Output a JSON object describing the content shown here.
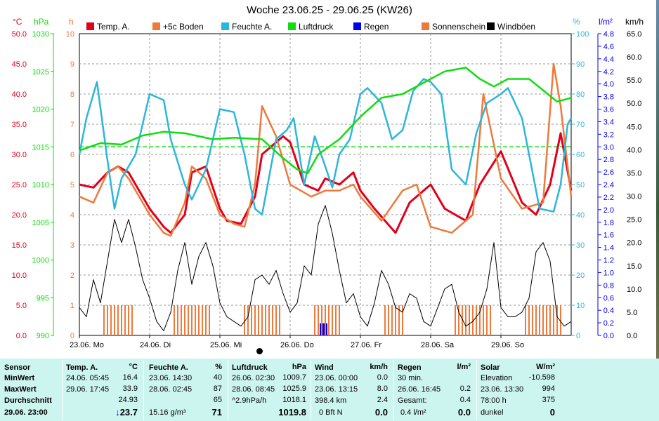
{
  "title": "Woche 23.06.25 - 29.06.25 (KW26)",
  "units": {
    "temp": "°C",
    "press": "hPa",
    "hours": "h",
    "pct": "%",
    "rad": "l/m²",
    "wind": "km/h"
  },
  "legend": [
    {
      "label": "Temp. A.",
      "color": "#e0001a"
    },
    {
      "label": "+5c Boden",
      "color": "#ee7a3c"
    },
    {
      "label": "Feuchte A.",
      "color": "#2cb6dc"
    },
    {
      "label": "Luftdruck",
      "color": "#10dd10"
    },
    {
      "label": "Regen",
      "color": "#0000ee"
    },
    {
      "label": "Sonnenschein",
      "color": "#ee7a3c"
    },
    {
      "label": "Windböen",
      "color": "#000000"
    }
  ],
  "chart_data": {
    "type": "line",
    "title": "Woche 23.06.25 - 29.06.25 (KW26)",
    "x_ticks": [
      "23.06. Mo",
      "24.06. Di",
      "25.06. Mi",
      "26.06. Do",
      "27.06. Fr",
      "28.06. Sa",
      "29.06. So"
    ],
    "axes": {
      "temp_c": {
        "ticks": [
          "50.0",
          "45.0",
          "40.0",
          "35.0",
          "30.0",
          "25.0",
          "20.0",
          "15.0",
          "10.0",
          "5.0",
          "0.0"
        ],
        "ylim": [
          0,
          50
        ],
        "color": "#e0001a"
      },
      "pressure_hpa": {
        "ticks": [
          "1030",
          "1025",
          "1020",
          "1015",
          "1010",
          "1005",
          "1000",
          "995",
          "990"
        ],
        "ylim": [
          990,
          1030
        ],
        "color": "#10dd10"
      },
      "sunshine_h": {
        "ticks": [
          "10",
          "9",
          "8",
          "7",
          "6",
          "5",
          "4",
          "3",
          "2",
          "1",
          "0"
        ],
        "ylim": [
          0,
          10
        ],
        "color": "#ee7a3c"
      },
      "humidity_pct": {
        "ticks": [
          "100",
          "90",
          "80",
          "70",
          "60",
          "50",
          "40",
          "30",
          "20",
          "10",
          "0"
        ],
        "ylim": [
          0,
          100
        ],
        "color": "#2cb6dc"
      },
      "rain_lm2": {
        "ticks": [
          "4.8",
          "4.6",
          "4.4",
          "4.2",
          "4.0",
          "3.8",
          "3.6",
          "3.4",
          "3.2",
          "3.0",
          "2.8",
          "2.6",
          "2.4",
          "2.2",
          "2.0",
          "1.8",
          "1.6",
          "1.4",
          "1.2",
          "1.0",
          "0.8",
          "0.6",
          "0.4",
          "0.2",
          "0.0"
        ],
        "ylim": [
          0,
          5
        ],
        "color": "#0000ee"
      },
      "wind_kmh": {
        "ticks": [
          "65.0",
          "60.0",
          "55.0",
          "50.0",
          "45.0",
          "40.0",
          "35.0",
          "30.0",
          "25.0",
          "20.0",
          "15.0",
          "10.0",
          "5.0",
          "0.0"
        ],
        "ylim": [
          0,
          65
        ],
        "color": "#000000"
      }
    },
    "reference_line_hpa": 1015.0,
    "series": [
      {
        "name": "Temp. A.",
        "unit": "°C",
        "color": "#e0001a",
        "x": [
          0,
          0.2,
          0.4,
          0.55,
          0.7,
          0.9,
          1.0,
          1.2,
          1.3,
          1.5,
          1.6,
          1.8,
          2.0,
          2.1,
          2.3,
          2.5,
          2.6,
          2.9,
          3.0,
          3.2,
          3.4,
          3.5,
          3.7,
          3.9,
          4.0,
          4.2,
          4.5,
          4.7,
          5.0,
          5.2,
          5.5,
          5.7,
          6.0,
          6.3,
          6.5,
          6.7,
          6.85,
          7.0
        ],
        "y": [
          25,
          24.5,
          27,
          28,
          27,
          23,
          21,
          18,
          17,
          20,
          27,
          28,
          21,
          19,
          18.5,
          23,
          30,
          33,
          32,
          25,
          24,
          26,
          25,
          27,
          24,
          21,
          17,
          22,
          25,
          21,
          19,
          25,
          30.5,
          22,
          20,
          25,
          33.5,
          24
        ]
      },
      {
        "name": "+5c Boden",
        "unit": "°C",
        "color": "#ee7a3c",
        "x": [
          0,
          0.2,
          0.4,
          0.55,
          0.7,
          0.9,
          1.0,
          1.2,
          1.3,
          1.5,
          1.6,
          1.8,
          2.0,
          2.2,
          2.35,
          2.5,
          2.6,
          2.8,
          3.0,
          3.3,
          3.5,
          3.7,
          3.9,
          4.0,
          4.3,
          4.6,
          4.8,
          5.0,
          5.3,
          5.6,
          5.75,
          6.0,
          6.3,
          6.6,
          6.75,
          6.85,
          7.0
        ],
        "y": [
          23,
          22,
          27,
          28,
          26,
          22,
          20,
          17,
          16.5,
          22,
          28,
          26,
          20,
          18.5,
          18,
          25,
          38,
          33,
          25,
          23,
          24,
          24,
          25,
          23,
          19,
          24,
          25,
          18,
          17,
          20,
          40,
          26,
          21,
          22,
          45,
          38,
          23
        ]
      },
      {
        "name": "Feuchte A.",
        "unit": "%",
        "color": "#2cb6dc",
        "x": [
          0,
          0.1,
          0.25,
          0.4,
          0.5,
          0.6,
          0.8,
          1.0,
          1.2,
          1.3,
          1.5,
          1.6,
          1.8,
          2.0,
          2.2,
          2.35,
          2.5,
          2.6,
          2.8,
          2.95,
          3.05,
          3.2,
          3.35,
          3.5,
          3.6,
          3.7,
          3.85,
          4.0,
          4.1,
          4.3,
          4.45,
          4.6,
          4.75,
          4.9,
          5.0,
          5.15,
          5.3,
          5.5,
          5.65,
          5.8,
          6.0,
          6.1,
          6.3,
          6.55,
          6.75,
          6.85,
          6.95,
          7.0
        ],
        "y": [
          60,
          72,
          84,
          58,
          42,
          52,
          60,
          80,
          78,
          65,
          50,
          45,
          55,
          75,
          74,
          60,
          42,
          40,
          65,
          68,
          72,
          50,
          66,
          56,
          49,
          60,
          65,
          80,
          82,
          77,
          65,
          68,
          81,
          85,
          84,
          80,
          55,
          50,
          67,
          77,
          80,
          82,
          72,
          42,
          41,
          50,
          70,
          72
        ]
      },
      {
        "name": "Luftdruck",
        "unit": "hPa",
        "color": "#10dd10",
        "x": [
          0,
          0.3,
          0.6,
          0.9,
          1.2,
          1.5,
          1.9,
          2.2,
          2.6,
          2.9,
          3.1,
          3.25,
          3.4,
          3.7,
          4.0,
          4.3,
          4.6,
          4.9,
          5.2,
          5.5,
          5.7,
          5.9,
          6.1,
          6.4,
          6.6,
          6.8,
          7.0
        ],
        "y": [
          1014.5,
          1015.5,
          1015.3,
          1016.5,
          1017,
          1016.8,
          1016,
          1016.2,
          1016,
          1013.5,
          1012,
          1011.5,
          1014,
          1016,
          1019,
          1021.5,
          1022,
          1023.5,
          1025,
          1025.5,
          1024,
          1023,
          1024,
          1024,
          1022.5,
          1021,
          1021.5
        ]
      },
      {
        "name": "Windböen",
        "unit": "km/h",
        "color": "#000000",
        "x": [
          0,
          0.1,
          0.2,
          0.3,
          0.4,
          0.5,
          0.6,
          0.7,
          0.8,
          0.9,
          1.0,
          1.1,
          1.2,
          1.3,
          1.4,
          1.5,
          1.6,
          1.7,
          1.8,
          1.9,
          2.0,
          2.1,
          2.2,
          2.3,
          2.4,
          2.5,
          2.6,
          2.7,
          2.8,
          2.9,
          3.0,
          3.1,
          3.2,
          3.3,
          3.4,
          3.5,
          3.6,
          3.7,
          3.8,
          3.9,
          4.0,
          4.1,
          4.2,
          4.3,
          4.4,
          4.5,
          4.6,
          4.7,
          4.8,
          4.9,
          5.0,
          5.1,
          5.2,
          5.3,
          5.4,
          5.5,
          5.6,
          5.7,
          5.8,
          5.9,
          6.0,
          6.1,
          6.2,
          6.3,
          6.4,
          6.5,
          6.6,
          6.7,
          6.8,
          6.9,
          7.0
        ],
        "y": [
          6,
          4,
          12,
          7,
          16,
          25,
          20,
          25,
          19,
          12,
          8,
          3,
          1,
          5,
          14,
          20,
          11,
          17,
          20,
          15,
          7,
          4,
          3,
          2,
          4,
          12,
          13,
          11,
          14,
          9,
          5,
          7,
          15,
          13,
          24,
          28,
          22,
          14,
          7,
          9,
          4,
          2,
          7,
          14,
          11,
          6,
          5,
          9,
          8,
          3,
          2,
          6,
          10,
          11,
          5,
          2,
          3,
          5,
          10,
          20,
          6,
          4,
          4,
          5,
          8,
          18,
          20,
          16,
          4,
          2,
          3
        ]
      },
      {
        "name": "Regen",
        "unit": "l/m²",
        "color": "#0000ee",
        "x": [
          3.45,
          3.5
        ],
        "y": [
          0.2,
          0.2
        ]
      },
      {
        "name": "Sonnenschein",
        "unit": "h",
        "color": "#ee7a3c",
        "type": "bar",
        "bar_value": 1,
        "x": [
          0.35,
          0.4,
          0.45,
          0.5,
          0.55,
          0.6,
          0.65,
          0.7,
          0.75,
          1.35,
          1.4,
          1.45,
          1.5,
          1.55,
          1.6,
          1.65,
          1.7,
          1.75,
          1.8,
          1.85,
          2.35,
          2.4,
          2.45,
          2.5,
          2.55,
          2.6,
          2.65,
          2.7,
          2.75,
          2.8,
          2.85,
          3.35,
          3.4,
          3.45,
          3.5,
          3.55,
          3.6,
          3.65,
          3.7,
          4.35,
          4.4,
          4.45,
          4.5,
          4.55,
          4.6,
          5.35,
          5.4,
          5.45,
          5.5,
          5.55,
          5.6,
          5.65,
          5.7,
          5.75,
          5.8,
          5.85,
          6.35,
          6.4,
          6.45,
          6.5,
          6.55,
          6.6,
          6.65,
          6.7,
          6.75,
          6.8,
          6.85
        ]
      }
    ]
  },
  "panel": {
    "sensor": {
      "head": "Sensor",
      "rows": [
        "MinWert",
        "MaxWert",
        "Durchschnitt",
        "29.06. 23:00"
      ]
    },
    "temp": {
      "head": "Temp. A.",
      "unit": "°C",
      "rows": [
        [
          "24.06.  05:45",
          "16.4"
        ],
        [
          "29.06.  17:45",
          "33.9"
        ],
        [
          "",
          "24.93"
        ]
      ],
      "current": "23.7",
      "current_arrow": "↓"
    },
    "feuchte": {
      "head": "Feuchte A.",
      "unit": "%",
      "rows": [
        [
          "23.06.  14:30",
          "40"
        ],
        [
          "28.06.  02:45",
          "87"
        ],
        [
          "",
          "65"
        ]
      ],
      "extra": "15.16 g/m³",
      "current": "71"
    },
    "druck": {
      "head": "Luftdruck",
      "unit": "hPa",
      "rows": [
        [
          "26.06.  02:30",
          "1009.7"
        ],
        [
          "28.06.  08:45",
          "1025.9"
        ],
        [
          "^2.9hPa/h",
          "1018.1"
        ]
      ],
      "current": "1019.8"
    },
    "wind": {
      "head": "Wind",
      "unit": "km/h",
      "rows": [
        [
          "23.06.  00:00",
          "0.0"
        ],
        [
          "23.06.  13:15",
          "8.0"
        ],
        [
          "398.4 km",
          "2.4"
        ]
      ],
      "extra": "0 Bft N",
      "current": "0.0"
    },
    "regen": {
      "head": "Regen",
      "unit": "l/m²",
      "rows": [
        [
          "30 min.",
          ""
        ],
        [
          "26.06.  16:45",
          "0.2"
        ],
        [
          "Gesamt:",
          "0.4"
        ]
      ],
      "extra": "0.4 l/m²",
      "current": "0.0"
    },
    "solar": {
      "head": "Solar",
      "unit": "W/m²",
      "rows": [
        [
          "Elevation",
          "-10.598"
        ],
        [
          "23.06.  13:30",
          "994"
        ],
        [
          "78:00 h",
          "375"
        ]
      ],
      "extra": "dunkel",
      "current": "0"
    }
  }
}
